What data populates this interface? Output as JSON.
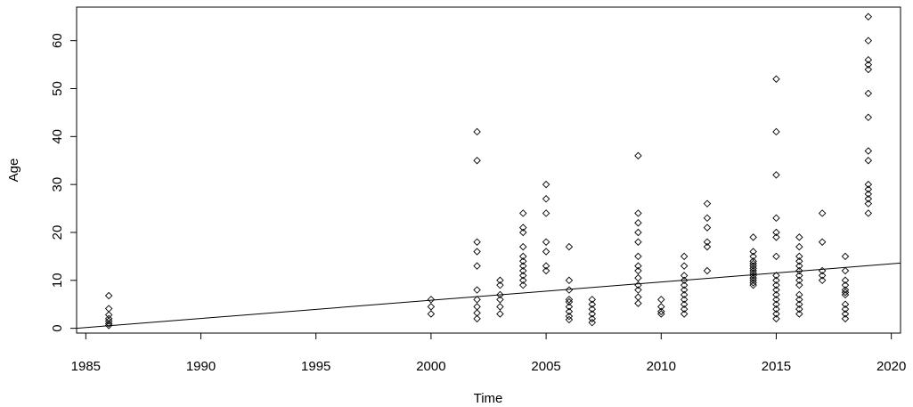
{
  "chart_data": {
    "type": "scatter",
    "title": "",
    "xlabel": "Time",
    "ylabel": "Age",
    "xlim": [
      1984.6,
      2020.4
    ],
    "ylim": [
      -1,
      67
    ],
    "x_ticks": [
      1985,
      1990,
      1995,
      2000,
      2005,
      2010,
      2015,
      2020
    ],
    "y_ticks": [
      0,
      10,
      20,
      30,
      40,
      50,
      60
    ],
    "marker": "diamond-open",
    "grid": false,
    "legend": "none",
    "points": [
      [
        1986,
        6.8
      ],
      [
        1986,
        4.1
      ],
      [
        1986,
        2.8
      ],
      [
        1986,
        2.0
      ],
      [
        1986,
        1.5
      ],
      [
        1986,
        1.0
      ],
      [
        1986,
        0.6
      ],
      [
        2000,
        6.0
      ],
      [
        2000,
        4.5
      ],
      [
        2000,
        3.0
      ],
      [
        2002,
        41
      ],
      [
        2002,
        35
      ],
      [
        2002,
        18
      ],
      [
        2002,
        16
      ],
      [
        2002,
        13
      ],
      [
        2002,
        8
      ],
      [
        2002,
        6
      ],
      [
        2002,
        4.5
      ],
      [
        2002,
        3.2
      ],
      [
        2002,
        2.0
      ],
      [
        2003,
        10
      ],
      [
        2003,
        9
      ],
      [
        2003,
        7
      ],
      [
        2003,
        6
      ],
      [
        2003,
        4.5
      ],
      [
        2003,
        3
      ],
      [
        2004,
        24
      ],
      [
        2004,
        21
      ],
      [
        2004,
        20
      ],
      [
        2004,
        17
      ],
      [
        2004,
        15
      ],
      [
        2004,
        14
      ],
      [
        2004,
        13
      ],
      [
        2004,
        12
      ],
      [
        2004,
        11
      ],
      [
        2004,
        10
      ],
      [
        2004,
        9
      ],
      [
        2005,
        30
      ],
      [
        2005,
        27
      ],
      [
        2005,
        24
      ],
      [
        2005,
        18
      ],
      [
        2005,
        16
      ],
      [
        2005,
        13
      ],
      [
        2005,
        12
      ],
      [
        2006,
        17
      ],
      [
        2006,
        10
      ],
      [
        2006,
        8
      ],
      [
        2006,
        6
      ],
      [
        2006,
        5.5
      ],
      [
        2006,
        4.5
      ],
      [
        2006,
        3.5
      ],
      [
        2006,
        2.5
      ],
      [
        2006,
        1.8
      ],
      [
        2007,
        6
      ],
      [
        2007,
        5
      ],
      [
        2007,
        4
      ],
      [
        2007,
        3
      ],
      [
        2007,
        2
      ],
      [
        2007,
        1.2
      ],
      [
        2009,
        36
      ],
      [
        2009,
        24
      ],
      [
        2009,
        22
      ],
      [
        2009,
        20
      ],
      [
        2009,
        18
      ],
      [
        2009,
        15
      ],
      [
        2009,
        13
      ],
      [
        2009,
        12
      ],
      [
        2009,
        10.5
      ],
      [
        2009,
        9
      ],
      [
        2009,
        8
      ],
      [
        2009,
        6.5
      ],
      [
        2009,
        5.2
      ],
      [
        2010,
        6
      ],
      [
        2010,
        4.5
      ],
      [
        2010,
        3.5
      ],
      [
        2010,
        3
      ],
      [
        2011,
        15
      ],
      [
        2011,
        13
      ],
      [
        2011,
        11
      ],
      [
        2011,
        10
      ],
      [
        2011,
        9
      ],
      [
        2011,
        8
      ],
      [
        2011,
        7
      ],
      [
        2011,
        6
      ],
      [
        2011,
        5
      ],
      [
        2011,
        4
      ],
      [
        2011,
        3
      ],
      [
        2012,
        26
      ],
      [
        2012,
        23
      ],
      [
        2012,
        21
      ],
      [
        2012,
        18
      ],
      [
        2012,
        17
      ],
      [
        2012,
        12
      ],
      [
        2014,
        19
      ],
      [
        2014,
        16
      ],
      [
        2014,
        15
      ],
      [
        2014,
        14
      ],
      [
        2014,
        13.5
      ],
      [
        2014,
        13
      ],
      [
        2014,
        12.5
      ],
      [
        2014,
        12
      ],
      [
        2014,
        11.5
      ],
      [
        2014,
        11
      ],
      [
        2014,
        10.5
      ],
      [
        2014,
        10
      ],
      [
        2014,
        9.5
      ],
      [
        2014,
        9
      ],
      [
        2015,
        52
      ],
      [
        2015,
        41
      ],
      [
        2015,
        32
      ],
      [
        2015,
        23
      ],
      [
        2015,
        20
      ],
      [
        2015,
        19
      ],
      [
        2015,
        15
      ],
      [
        2015,
        11
      ],
      [
        2015,
        10
      ],
      [
        2015,
        9
      ],
      [
        2015,
        8
      ],
      [
        2015,
        7
      ],
      [
        2015,
        6
      ],
      [
        2015,
        5
      ],
      [
        2015,
        4
      ],
      [
        2015,
        3
      ],
      [
        2015,
        2
      ],
      [
        2016,
        19
      ],
      [
        2016,
        17
      ],
      [
        2016,
        15
      ],
      [
        2016,
        14
      ],
      [
        2016,
        13
      ],
      [
        2016,
        12
      ],
      [
        2016,
        11
      ],
      [
        2016,
        10
      ],
      [
        2016,
        9
      ],
      [
        2016,
        7
      ],
      [
        2016,
        6
      ],
      [
        2016,
        5
      ],
      [
        2016,
        4
      ],
      [
        2016,
        3
      ],
      [
        2017,
        24
      ],
      [
        2017,
        18
      ],
      [
        2017,
        12
      ],
      [
        2017,
        11
      ],
      [
        2017,
        10
      ],
      [
        2018,
        15
      ],
      [
        2018,
        12
      ],
      [
        2018,
        10
      ],
      [
        2018,
        9
      ],
      [
        2018,
        8
      ],
      [
        2018,
        7.5
      ],
      [
        2018,
        7
      ],
      [
        2018,
        5
      ],
      [
        2018,
        4
      ],
      [
        2018,
        3
      ],
      [
        2018,
        2
      ],
      [
        2019,
        65
      ],
      [
        2019,
        60
      ],
      [
        2019,
        56
      ],
      [
        2019,
        55
      ],
      [
        2019,
        54
      ],
      [
        2019,
        49
      ],
      [
        2019,
        44
      ],
      [
        2019,
        37
      ],
      [
        2019,
        35
      ],
      [
        2019,
        30
      ],
      [
        2019,
        29
      ],
      [
        2019,
        28
      ],
      [
        2019,
        27
      ],
      [
        2019,
        26
      ],
      [
        2019,
        24
      ]
    ],
    "regression_line": {
      "x": [
        1984.6,
        2020.4
      ],
      "y": [
        0,
        13.6
      ]
    }
  }
}
